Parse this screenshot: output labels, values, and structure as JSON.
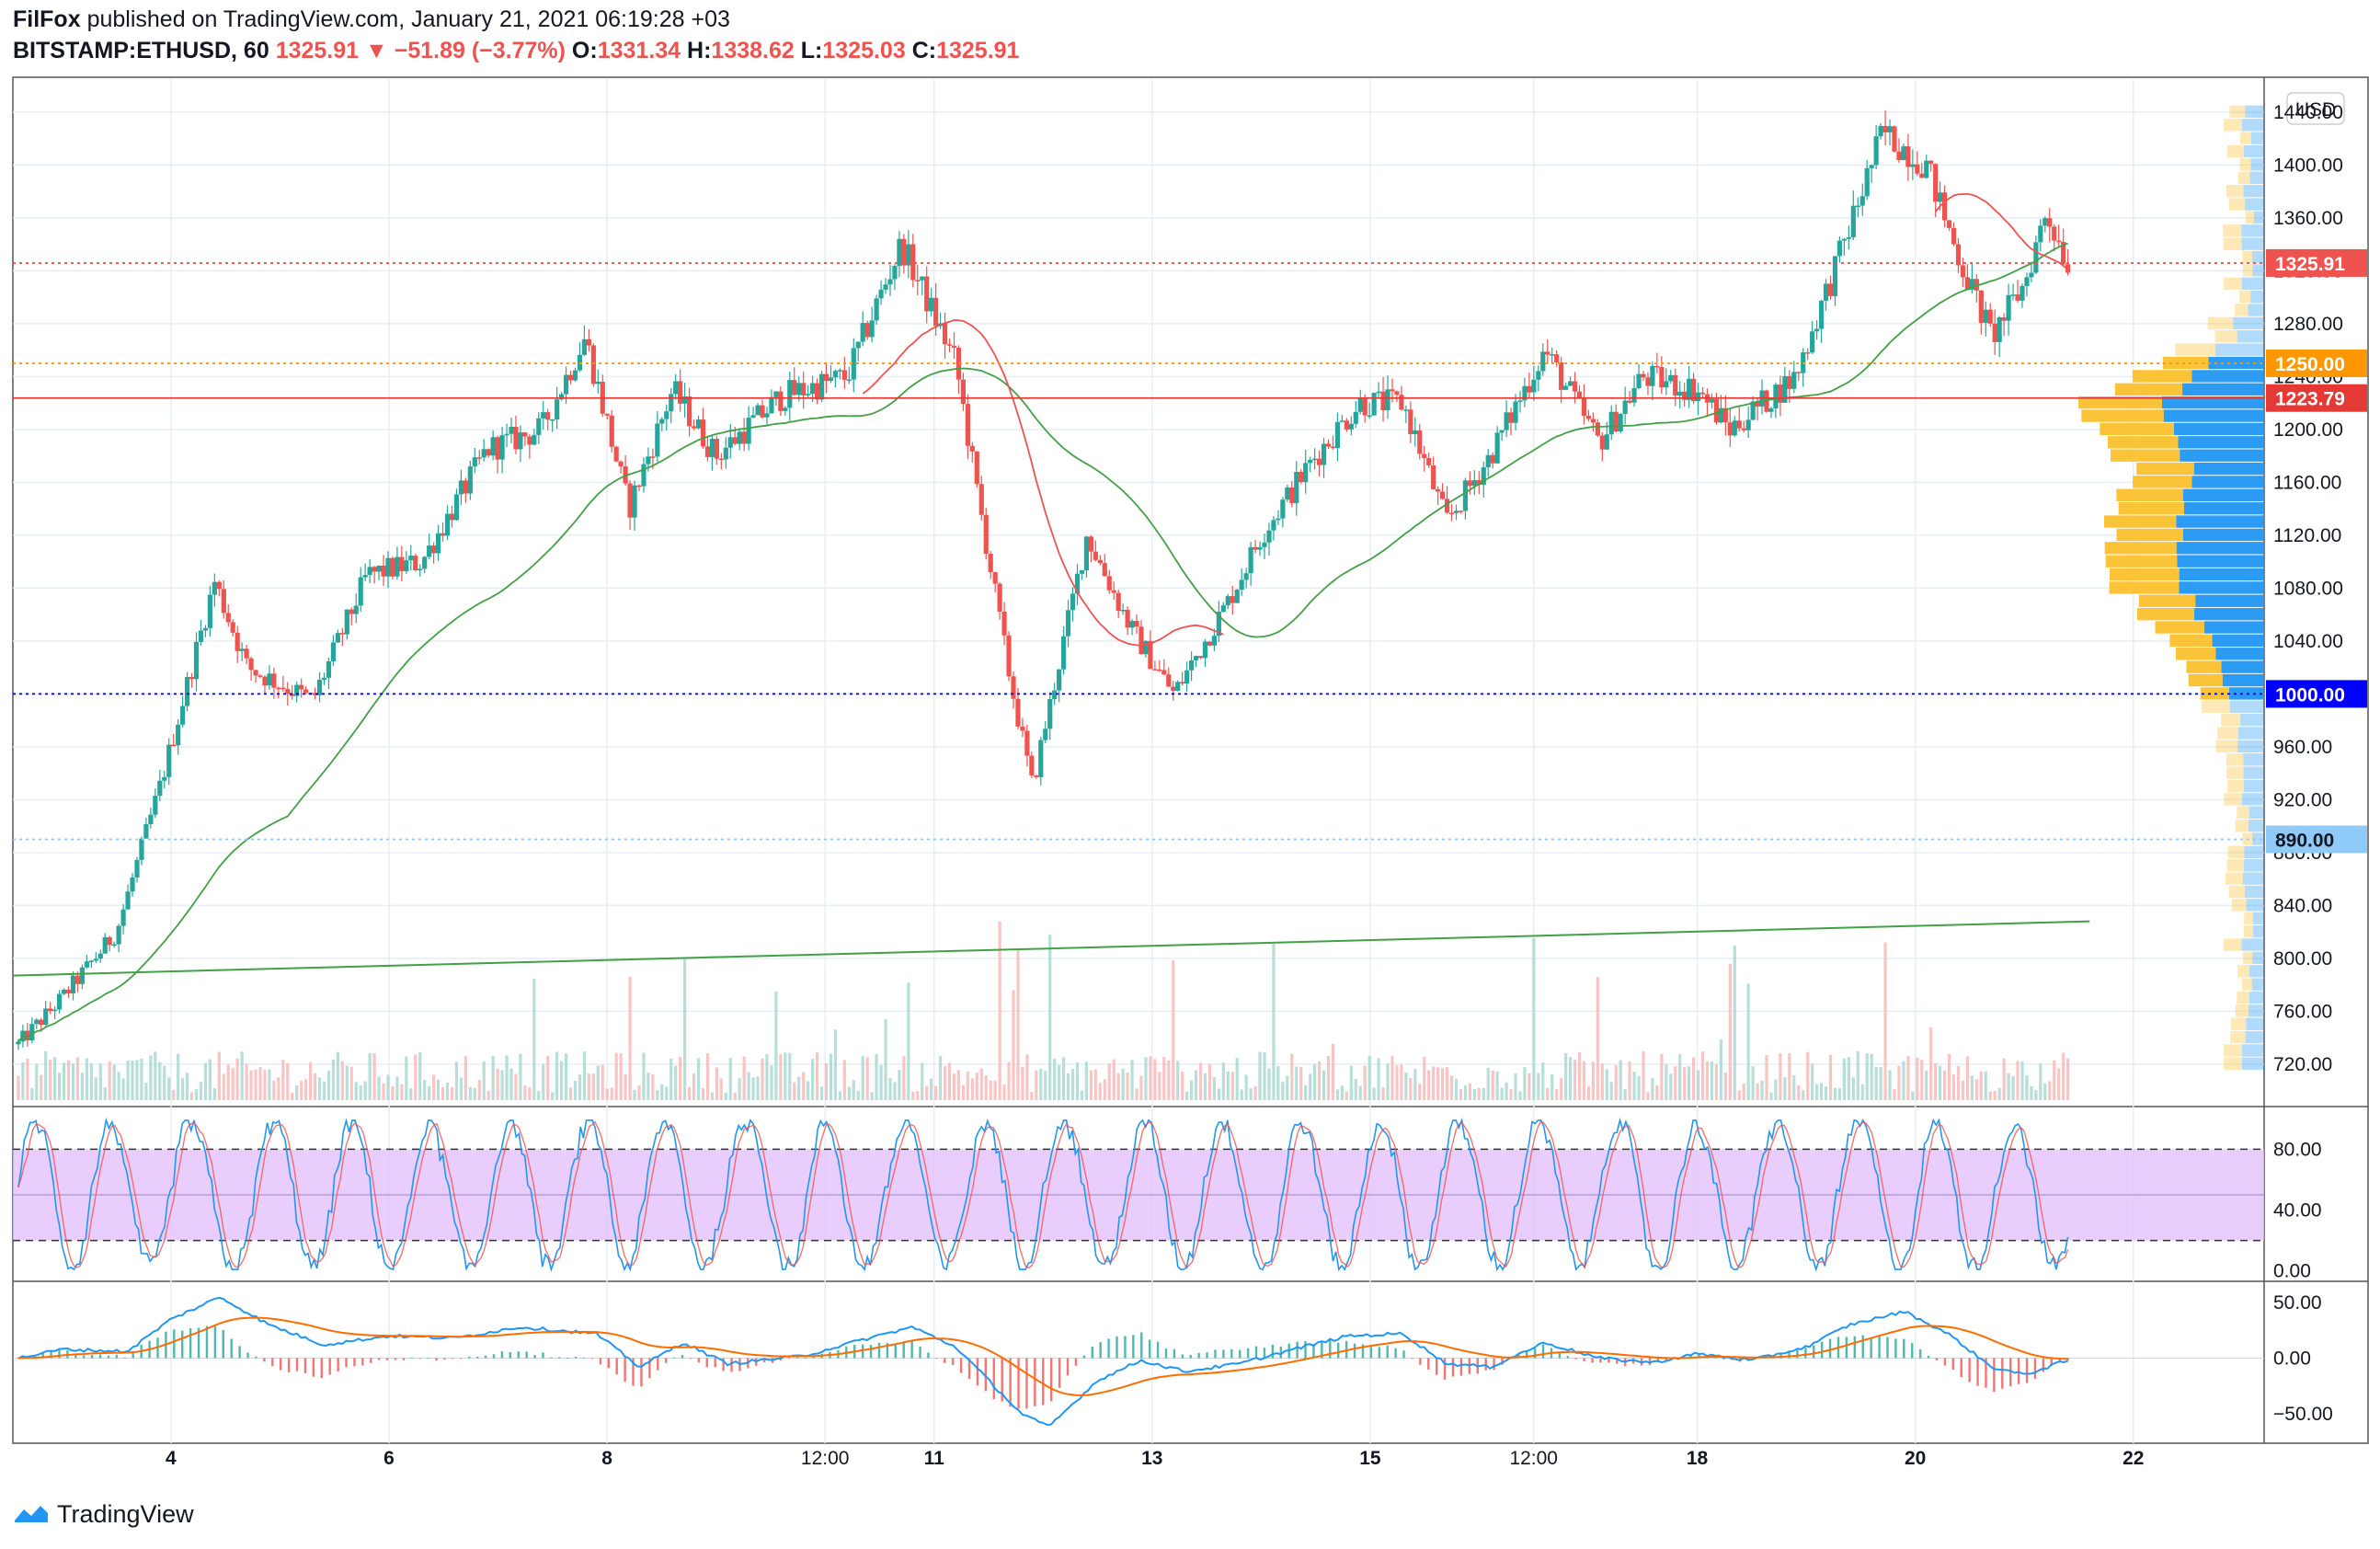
{
  "header": {
    "publisher": "FilFox",
    "published_text": "published on TradingView.com, January 21, 2021 06:19:28 +03",
    "symbol": "BITSTAMP:ETHUSD, 60",
    "last": "1325.91",
    "change_arrow": "▼",
    "change": "−51.89 (−3.77%)",
    "o_label": "O:",
    "o_value": "1331.34",
    "h_label": "H:",
    "h_value": "1338.62",
    "l_label": "L:",
    "l_value": "1325.03",
    "c_label": "C:",
    "c_value": "1325.91"
  },
  "footer": {
    "brand": "TradingView",
    "logo_icon": "tradingview-logo-icon"
  },
  "colors": {
    "up": "#26a69a",
    "down": "#ef5350",
    "ma_green": "#43a047",
    "ma_red": "#ef5350",
    "stoch_band": "#e1bdfc",
    "macd_blue": "#2196f3",
    "macd_orange": "#ff6d00",
    "vp_yellow": "#fbc02d",
    "vp_blue": "#2196f3",
    "level_blue": "#0000ff",
    "level_orange": "#ff9800"
  },
  "chart_data": [
    {
      "type": "candlestick",
      "currency_label": "USD",
      "ylim": [
        690,
        1465
      ],
      "y_ticks": [
        "720.00",
        "760.00",
        "800.00",
        "840.00",
        "880.00",
        "920.00",
        "960.00",
        "1000.00",
        "1040.00",
        "1080.00",
        "1120.00",
        "1160.00",
        "1200.00",
        "1240.00",
        "1280.00",
        "1320.00",
        "1360.00",
        "1400.00",
        "1440.00"
      ],
      "x_ticks": [
        {
          "label": "4",
          "bold": true,
          "day": 4
        },
        {
          "label": "6",
          "bold": true,
          "day": 6
        },
        {
          "label": "8",
          "bold": true,
          "day": 8
        },
        {
          "label": "12:00",
          "bold": false,
          "day": 10
        },
        {
          "label": "11",
          "bold": true,
          "day": 11
        },
        {
          "label": "13",
          "bold": true,
          "day": 13
        },
        {
          "label": "15",
          "bold": true,
          "day": 15
        },
        {
          "label": "12:00",
          "bold": false,
          "day": 16.5
        },
        {
          "label": "18",
          "bold": true,
          "day": 18
        },
        {
          "label": "20",
          "bold": true,
          "day": 20
        },
        {
          "label": "22",
          "bold": true,
          "day": 22
        }
      ],
      "x_range_days": [
        2.55,
        23.2
      ],
      "price_path": [
        {
          "day": 2.6,
          "price": 735
        },
        {
          "day": 3.0,
          "price": 770
        },
        {
          "day": 3.5,
          "price": 820
        },
        {
          "day": 3.9,
          "price": 930
        },
        {
          "day": 4.4,
          "price": 1085
        },
        {
          "day": 4.7,
          "price": 1020
        },
        {
          "day": 5.3,
          "price": 995
        },
        {
          "day": 5.8,
          "price": 1090
        },
        {
          "day": 6.3,
          "price": 1100
        },
        {
          "day": 6.9,
          "price": 1185
        },
        {
          "day": 7.4,
          "price": 1200
        },
        {
          "day": 7.8,
          "price": 1270
        },
        {
          "day": 8.2,
          "price": 1140
        },
        {
          "day": 8.6,
          "price": 1230
        },
        {
          "day": 9.0,
          "price": 1180
        },
        {
          "day": 9.6,
          "price": 1225
        },
        {
          "day": 10.2,
          "price": 1240
        },
        {
          "day": 10.7,
          "price": 1340
        },
        {
          "day": 11.2,
          "price": 1250
        },
        {
          "day": 11.4,
          "price": 1150
        },
        {
          "day": 11.7,
          "price": 1010
        },
        {
          "day": 11.9,
          "price": 930
        },
        {
          "day": 12.4,
          "price": 1120
        },
        {
          "day": 12.8,
          "price": 1050
        },
        {
          "day": 13.2,
          "price": 1000
        },
        {
          "day": 13.7,
          "price": 1070
        },
        {
          "day": 14.0,
          "price": 1120
        },
        {
          "day": 14.5,
          "price": 1180
        },
        {
          "day": 14.9,
          "price": 1220
        },
        {
          "day": 15.3,
          "price": 1220
        },
        {
          "day": 15.7,
          "price": 1130
        },
        {
          "day": 16.1,
          "price": 1180
        },
        {
          "day": 16.6,
          "price": 1260
        },
        {
          "day": 17.1,
          "price": 1190
        },
        {
          "day": 17.5,
          "price": 1240
        },
        {
          "day": 18.0,
          "price": 1230
        },
        {
          "day": 18.3,
          "price": 1200
        },
        {
          "day": 18.9,
          "price": 1240
        },
        {
          "day": 19.3,
          "price": 1330
        },
        {
          "day": 19.7,
          "price": 1425
        },
        {
          "day": 20.1,
          "price": 1400
        },
        {
          "day": 20.4,
          "price": 1330
        },
        {
          "day": 20.7,
          "price": 1270
        },
        {
          "day": 21.0,
          "price": 1310
        },
        {
          "day": 21.2,
          "price": 1365
        },
        {
          "day": 21.4,
          "price": 1326
        }
      ],
      "horizontal_levels": [
        {
          "price": "1325.91",
          "label": "1325.91",
          "style": "dotted",
          "color": "#ef5350",
          "tag_bg": "#ef5350"
        },
        {
          "price": "1250.00",
          "label": "1250.00",
          "style": "dotted",
          "color": "#ff9800",
          "tag_bg": "#ff9800"
        },
        {
          "price": "1223.79",
          "label": "1223.79",
          "style": "solid",
          "color": "#e53935",
          "tag_bg": "#e53935"
        },
        {
          "price": "1000.00",
          "label": "1000.00",
          "style": "dotted",
          "color": "#0000cc",
          "tag_bg": "#0000ff"
        },
        {
          "price": "890.00",
          "label": "890.00",
          "style": "dotted",
          "color": "#90caf9",
          "tag_bg": "#90caf9"
        }
      ],
      "trend_line": {
        "start": {
          "day": 2.55,
          "price": 787
        },
        "end": {
          "day": 21.6,
          "price": 828
        }
      }
    },
    {
      "type": "line",
      "indicator": "stochastic",
      "ylim": [
        -5,
        105
      ],
      "y_ticks": [
        "0.00",
        "40.00",
        "80.00"
      ],
      "band": [
        20,
        80
      ]
    },
    {
      "type": "line",
      "indicator": "macd",
      "ylim": [
        -65,
        65
      ],
      "y_ticks": [
        "−50.00",
        "0.00",
        "50.00"
      ],
      "macd_path": [
        {
          "day": 2.6,
          "value": 0
        },
        {
          "day": 3.0,
          "value": 8
        },
        {
          "day": 3.6,
          "value": 6
        },
        {
          "day": 4.0,
          "value": 35
        },
        {
          "day": 4.45,
          "value": 55
        },
        {
          "day": 4.9,
          "value": 30
        },
        {
          "day": 5.4,
          "value": 12
        },
        {
          "day": 6.0,
          "value": 20
        },
        {
          "day": 6.6,
          "value": 18
        },
        {
          "day": 7.2,
          "value": 28
        },
        {
          "day": 7.9,
          "value": 22
        },
        {
          "day": 8.3,
          "value": -8
        },
        {
          "day": 8.7,
          "value": 14
        },
        {
          "day": 9.1,
          "value": -5
        },
        {
          "day": 9.8,
          "value": 2
        },
        {
          "day": 10.4,
          "value": 18
        },
        {
          "day": 10.8,
          "value": 28
        },
        {
          "day": 11.2,
          "value": 10
        },
        {
          "day": 11.5,
          "value": -20
        },
        {
          "day": 11.8,
          "value": -50
        },
        {
          "day": 12.05,
          "value": -62
        },
        {
          "day": 12.5,
          "value": -20
        },
        {
          "day": 12.9,
          "value": -2
        },
        {
          "day": 13.3,
          "value": -12
        },
        {
          "day": 13.8,
          "value": -5
        },
        {
          "day": 14.3,
          "value": 8
        },
        {
          "day": 14.8,
          "value": 20
        },
        {
          "day": 15.3,
          "value": 22
        },
        {
          "day": 15.7,
          "value": -5
        },
        {
          "day": 16.1,
          "value": -8
        },
        {
          "day": 16.6,
          "value": 14
        },
        {
          "day": 17.1,
          "value": 0
        },
        {
          "day": 17.6,
          "value": -4
        },
        {
          "day": 18.0,
          "value": 4
        },
        {
          "day": 18.5,
          "value": -2
        },
        {
          "day": 19.0,
          "value": 10
        },
        {
          "day": 19.4,
          "value": 30
        },
        {
          "day": 19.9,
          "value": 42
        },
        {
          "day": 20.3,
          "value": 22
        },
        {
          "day": 20.7,
          "value": -8
        },
        {
          "day": 21.0,
          "value": -15
        },
        {
          "day": 21.4,
          "value": -2
        }
      ]
    }
  ]
}
